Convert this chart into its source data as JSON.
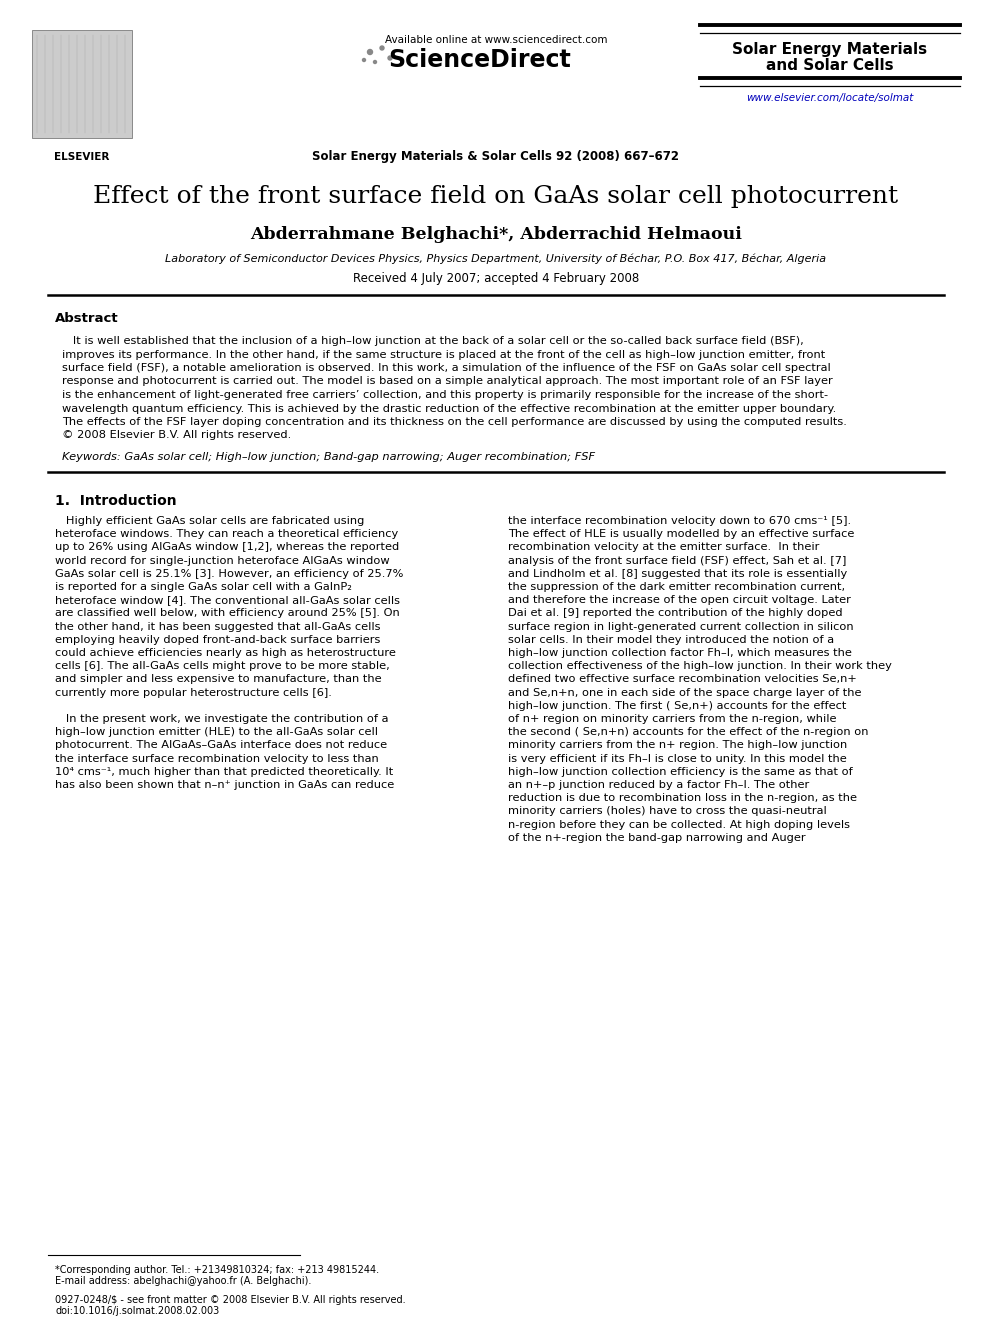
{
  "page_background": "#ffffff",
  "available_online": "Available online at www.sciencedirect.com",
  "sciencedirect": "ScienceDirect",
  "journal_name_center": "Solar Energy Materials & Solar Cells 92 (2008) 667–672",
  "journal_name_right_1": "Solar Energy Materials",
  "journal_name_right_2": "and Solar Cells",
  "url_right": "www.elsevier.com/locate/solmat",
  "elsevier_label": "ELSEVIER",
  "title": "Effect of the front surface field on GaAs solar cell photocurrent",
  "authors": "Abderrahmane Belghachi*, Abderrachid Helmaoui",
  "affiliation": "Laboratory of Semiconductor Devices Physics, Physics Department, University of Béchar, P.O. Box 417, Béchar, Algeria",
  "received": "Received 4 July 2007; accepted 4 February 2008",
  "abstract_title": "Abstract",
  "keywords_line": "Keywords: GaAs solar cell; High–low junction; Band-gap narrowing; Auger recombination; FSF",
  "section1_title": "1.  Introduction",
  "abstract_lines": [
    "   It is well established that the inclusion of a high–low junction at the back of a solar cell or the so-called back surface field (BSF),",
    "improves its performance. In the other hand, if the same structure is placed at the front of the cell as high–low junction emitter, front",
    "surface field (FSF), a notable amelioration is observed. In this work, a simulation of the influence of the FSF on GaAs solar cell spectral",
    "response and photocurrent is carried out. The model is based on a simple analytical approach. The most important role of an FSF layer",
    "is the enhancement of light-generated free carriers’ collection, and this property is primarily responsible for the increase of the short-",
    "wavelength quantum efficiency. This is achieved by the drastic reduction of the effective recombination at the emitter upper boundary.",
    "The effects of the FSF layer doping concentration and its thickness on the cell performance are discussed by using the computed results.",
    "© 2008 Elsevier B.V. All rights reserved."
  ],
  "intro_left_lines": [
    "   Highly efficient GaAs solar cells are fabricated using",
    "heteroface windows. They can reach a theoretical efficiency",
    "up to 26% using AlGaAs window [1,2], whereas the reported",
    "world record for single-junction heteroface AlGaAs window",
    "GaAs solar cell is 25.1% [3]. However, an efficiency of 25.7%",
    "is reported for a single GaAs solar cell with a GaInP₂",
    "heteroface window [4]. The conventional all-GaAs solar cells",
    "are classified well below, with efficiency around 25% [5]. On",
    "the other hand, it has been suggested that all-GaAs cells",
    "employing heavily doped front-and-back surface barriers",
    "could achieve efficiencies nearly as high as heterostructure",
    "cells [6]. The all-GaAs cells might prove to be more stable,",
    "and simpler and less expensive to manufacture, than the",
    "currently more popular heterostructure cells [6].",
    "",
    "   In the present work, we investigate the contribution of a",
    "high–low junction emitter (HLE) to the all-GaAs solar cell",
    "photocurrent. The AlGaAs–GaAs interface does not reduce",
    "the interface surface recombination velocity to less than",
    "10⁴ cms⁻¹, much higher than that predicted theoretically. It",
    "has also been shown that n–n⁺ junction in GaAs can reduce"
  ],
  "intro_right_lines": [
    "the interface recombination velocity down to 670 cms⁻¹ [5].",
    "The effect of HLE is usually modelled by an effective surface",
    "recombination velocity at the emitter surface.  In their",
    "analysis of the front surface field (FSF) effect, Sah et al. [7]",
    "and Lindholm et al. [8] suggested that its role is essentially",
    "the suppression of the dark emitter recombination current,",
    "and therefore the increase of the open circuit voltage. Later",
    "Dai et al. [9] reported the contribution of the highly doped",
    "surface region in light-generated current collection in silicon",
    "solar cells. In their model they introduced the notion of a",
    "high–low junction collection factor Fh–l, which measures the",
    "collection effectiveness of the high–low junction. In their work they",
    "defined two effective surface recombination velocities Se,n+",
    "and Se,n+n, one in each side of the space charge layer of the",
    "high–low junction. The first ( Se,n+) accounts for the effect",
    "of n+ region on minority carriers from the n-region, while",
    "the second ( Se,n+n) accounts for the effect of the n-region on",
    "minority carriers from the n+ region. The high–low junction",
    "is very efficient if its Fh–l is close to unity. In this model the",
    "high–low junction collection efficiency is the same as that of",
    "an n+–p junction reduced by a factor Fh–l. The other",
    "reduction is due to recombination loss in the n-region, as the",
    "minority carriers (holes) have to cross the quasi-neutral",
    "n-region before they can be collected. At high doping levels",
    "of the n+-region the band-gap narrowing and Auger"
  ],
  "footnote_star": "*Corresponding author. Tel.: +21349810324; fax: +213 49815244.",
  "footnote_email": "E-mail address: abelghachi@yahoo.fr (A. Belghachi).",
  "footer_copyright": "0927-0248/$ - see front matter © 2008 Elsevier B.V. All rights reserved.",
  "footer_doi": "doi:10.1016/j.solmat.2008.02.003"
}
